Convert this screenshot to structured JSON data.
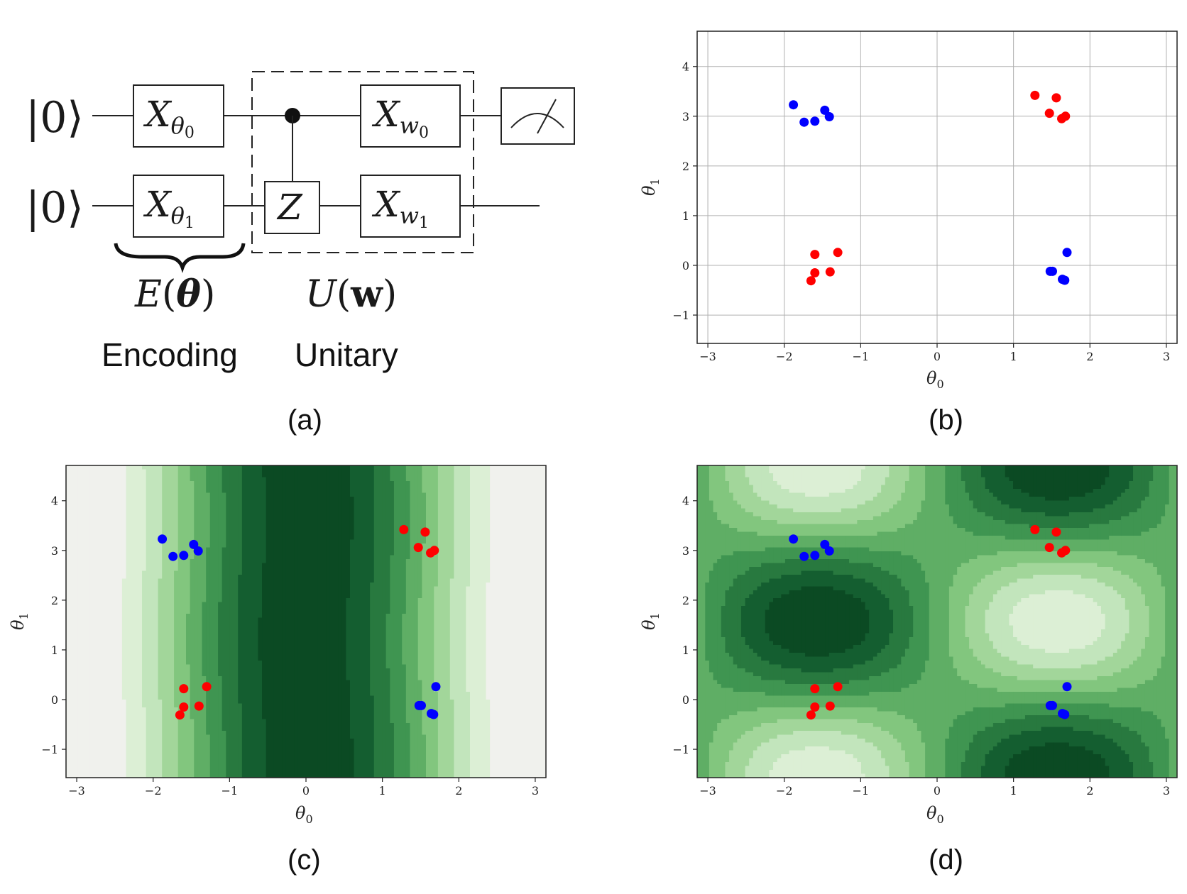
{
  "panel_labels": {
    "a": "(a)",
    "b": "(b)",
    "c": "(c)",
    "d": "(d)"
  },
  "circuit": {
    "ket0": "|0⟩",
    "ket1": "|0⟩",
    "gate_x_theta0": {
      "base": "X",
      "sub": "θ",
      "subsub": "0"
    },
    "gate_x_theta1": {
      "base": "X",
      "sub": "θ",
      "subsub": "1"
    },
    "gate_z": "Z",
    "gate_x_w0": {
      "base": "X",
      "sub": "w",
      "subsub": "0"
    },
    "gate_x_w1": {
      "base": "X",
      "sub": "w",
      "subsub": "1"
    },
    "encoding_expr": {
      "fn": "E",
      "arg": "θ"
    },
    "unitary_expr": {
      "fn": "U",
      "arg": "w"
    },
    "encoding_caption": "Encoding",
    "unitary_caption": "Unitary"
  },
  "axes": {
    "xlabel": {
      "sym": "θ",
      "sub": "0"
    },
    "ylabel": {
      "sym": "θ",
      "sub": "1"
    },
    "xticks": [
      {
        "v": -3,
        "label": "−3"
      },
      {
        "v": -2,
        "label": "−2"
      },
      {
        "v": -1,
        "label": "−1"
      },
      {
        "v": 0,
        "label": "0"
      },
      {
        "v": 1,
        "label": "1"
      },
      {
        "v": 2,
        "label": "2"
      },
      {
        "v": 3,
        "label": "3"
      }
    ],
    "yticks": [
      {
        "v": -1,
        "label": "−1"
      },
      {
        "v": 0,
        "label": "0"
      },
      {
        "v": 1,
        "label": "1"
      },
      {
        "v": 2,
        "label": "2"
      },
      {
        "v": 3,
        "label": "3"
      },
      {
        "v": 4,
        "label": "4"
      }
    ],
    "xlim": [
      -3.14,
      3.14
    ],
    "ylim": [
      -1.57,
      4.71
    ]
  },
  "colors": {
    "red": "#ff0000",
    "blue": "#0000ff",
    "grid": "#b0b0b0",
    "greens": [
      "#f0f1ed",
      "#dcefd5",
      "#c2e5bc",
      "#a2d69a",
      "#82c67e",
      "#5fae65",
      "#3f9551",
      "#28793f",
      "#145e30",
      "#0b4a23"
    ]
  },
  "chart_data": [
    {
      "panel": "b",
      "type": "scatter",
      "grid": true,
      "xlim": [
        -3.14,
        3.14
      ],
      "ylim": [
        -1.57,
        4.71
      ],
      "series": [
        {
          "color": "#0000ff",
          "points": [
            [
              -1.88,
              3.23
            ],
            [
              -1.74,
              2.88
            ],
            [
              -1.6,
              2.9
            ],
            [
              -1.47,
              3.12
            ],
            [
              -1.41,
              2.99
            ],
            [
              1.48,
              -0.12
            ],
            [
              1.51,
              -0.12
            ],
            [
              1.7,
              0.26
            ],
            [
              1.64,
              -0.28
            ],
            [
              1.67,
              -0.3
            ]
          ]
        },
        {
          "color": "#ff0000",
          "points": [
            [
              1.28,
              3.42
            ],
            [
              1.56,
              3.37
            ],
            [
              1.47,
              3.06
            ],
            [
              1.63,
              2.95
            ],
            [
              1.68,
              3.0
            ],
            [
              -1.6,
              0.22
            ],
            [
              -1.3,
              0.26
            ],
            [
              -1.6,
              -0.15
            ],
            [
              -1.4,
              -0.13
            ],
            [
              -1.65,
              -0.31
            ]
          ]
        }
      ]
    },
    {
      "panel": "c",
      "type": "heatmap",
      "background": "contour bands varying with θ0 only, darkest near θ0 = 0, lightest at |θ0| ≈ 3",
      "series": [
        {
          "color": "#0000ff",
          "points": [
            [
              -1.88,
              3.23
            ],
            [
              -1.74,
              2.88
            ],
            [
              -1.6,
              2.9
            ],
            [
              -1.47,
              3.12
            ],
            [
              -1.41,
              2.99
            ],
            [
              1.48,
              -0.12
            ],
            [
              1.51,
              -0.12
            ],
            [
              1.7,
              0.26
            ],
            [
              1.64,
              -0.28
            ],
            [
              1.67,
              -0.3
            ]
          ]
        },
        {
          "color": "#ff0000",
          "points": [
            [
              1.28,
              3.42
            ],
            [
              1.56,
              3.37
            ],
            [
              1.47,
              3.06
            ],
            [
              1.63,
              2.95
            ],
            [
              1.68,
              3.0
            ],
            [
              -1.6,
              0.22
            ],
            [
              -1.3,
              0.26
            ],
            [
              -1.6,
              -0.15
            ],
            [
              -1.4,
              -0.13
            ],
            [
              -1.65,
              -0.31
            ]
          ]
        }
      ]
    },
    {
      "panel": "d",
      "type": "heatmap",
      "background": "contour bands, dark wells near (−1.57, 3.14) and (1.57, 0), light peaks near (1.57, 3.14) and (−1.57, 0)",
      "series": [
        {
          "color": "#0000ff",
          "points": [
            [
              -1.88,
              3.23
            ],
            [
              -1.74,
              2.88
            ],
            [
              -1.6,
              2.9
            ],
            [
              -1.47,
              3.12
            ],
            [
              -1.41,
              2.99
            ],
            [
              1.48,
              -0.12
            ],
            [
              1.51,
              -0.12
            ],
            [
              1.7,
              0.26
            ],
            [
              1.64,
              -0.28
            ],
            [
              1.67,
              -0.3
            ]
          ]
        },
        {
          "color": "#ff0000",
          "points": [
            [
              1.28,
              3.42
            ],
            [
              1.56,
              3.37
            ],
            [
              1.47,
              3.06
            ],
            [
              1.63,
              2.95
            ],
            [
              1.68,
              3.0
            ],
            [
              -1.6,
              0.22
            ],
            [
              -1.3,
              0.26
            ],
            [
              -1.6,
              -0.15
            ],
            [
              -1.4,
              -0.13
            ],
            [
              -1.65,
              -0.31
            ]
          ]
        }
      ]
    }
  ]
}
